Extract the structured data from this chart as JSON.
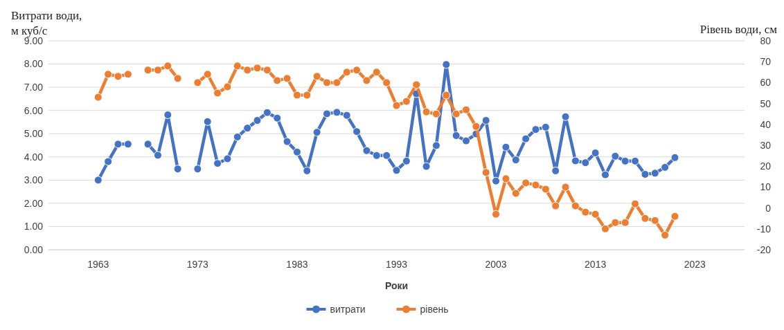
{
  "chart_data": {
    "type": "line",
    "ylabel": "Витрати води, м куб/с",
    "y2label": "Рівень води, см",
    "xlabel": "Роки",
    "x": [
      1963,
      1964,
      1965,
      1966,
      1967,
      1968,
      1969,
      1970,
      1971,
      1972,
      1973,
      1974,
      1975,
      1976,
      1977,
      1978,
      1979,
      1980,
      1981,
      1982,
      1983,
      1984,
      1985,
      1986,
      1987,
      1988,
      1989,
      1990,
      1991,
      1992,
      1993,
      1994,
      1995,
      1996,
      1997,
      1998,
      1999,
      2000,
      2001,
      2002,
      2003,
      2004,
      2005,
      2006,
      2007,
      2008,
      2009,
      2010,
      2011,
      2012,
      2013,
      2014,
      2015,
      2016,
      2017,
      2018,
      2019,
      2020,
      2021
    ],
    "series": [
      {
        "name": "витрати",
        "color": "#4472c4",
        "values": [
          3.0,
          3.8,
          4.55,
          4.55,
          null,
          4.55,
          4.07,
          5.81,
          3.48,
          null,
          3.48,
          5.52,
          3.72,
          3.92,
          4.86,
          5.24,
          5.57,
          5.91,
          5.67,
          4.66,
          4.21,
          3.4,
          5.06,
          5.86,
          5.92,
          5.79,
          5.09,
          4.27,
          4.06,
          4.06,
          3.42,
          3.82,
          6.72,
          3.59,
          4.49,
          7.98,
          4.92,
          4.69,
          4.99,
          5.57,
          2.96,
          4.42,
          3.87,
          4.78,
          5.18,
          5.28,
          3.4,
          5.73,
          3.83,
          3.75,
          4.17,
          3.23,
          4.03,
          3.82,
          3.82,
          3.25,
          3.3,
          3.55,
          3.97
        ]
      },
      {
        "name": "рівень",
        "color": "#ed7d31",
        "axis": "y2",
        "values": [
          53,
          64,
          63,
          64,
          null,
          66,
          66,
          68,
          62,
          null,
          60,
          64,
          55,
          58,
          68,
          66,
          67,
          66,
          61,
          62,
          54,
          54,
          63,
          60,
          60,
          65,
          66,
          61,
          65,
          60,
          49,
          51,
          59,
          46,
          45,
          54,
          45,
          47,
          39,
          17,
          -3,
          14,
          7,
          12,
          11,
          9,
          1,
          10,
          1,
          -2,
          -3,
          -10,
          -7,
          -7,
          2,
          -5,
          -6,
          -13,
          -4
        ]
      }
    ],
    "xlim": [
      1958,
      2028
    ],
    "xticks": [
      1963,
      1973,
      1983,
      1993,
      2003,
      2013,
      2023
    ],
    "ylim": [
      0,
      9
    ],
    "yticks": [
      {
        "value": 0,
        "label": "0.00"
      },
      {
        "value": 1,
        "label": "1.00"
      },
      {
        "value": 2,
        "label": "2.00"
      },
      {
        "value": 3,
        "label": "3.00"
      },
      {
        "value": 4,
        "label": "4.00"
      },
      {
        "value": 5,
        "label": "5.00"
      },
      {
        "value": 6,
        "label": "6.00"
      },
      {
        "value": 7,
        "label": "7.00"
      },
      {
        "value": 8,
        "label": "8.00"
      },
      {
        "value": 9,
        "label": "9.00"
      }
    ],
    "y2lim": [
      -20,
      80
    ],
    "y2ticks": [
      -20,
      -10,
      0,
      10,
      20,
      30,
      40,
      50,
      60,
      70,
      80
    ],
    "grid": "y",
    "legend": "bottom",
    "marker": "circle",
    "line_style": "solid"
  }
}
